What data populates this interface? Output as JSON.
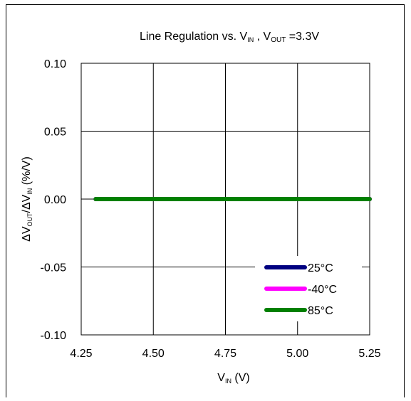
{
  "chart_data": {
    "type": "line",
    "title": {
      "prefix": "Line Regulation  vs. V",
      "sub1": "IN",
      "mid": " , V",
      "sub2": "OUT",
      "suffix": " =3.3V"
    },
    "xlabel": {
      "main": "V",
      "sub": "IN",
      "unit": " (V)"
    },
    "ylabel": {
      "p1": "ΔV",
      "s1": "OUT",
      "p2": "/ΔV",
      "s2": "IN",
      "p3": " (%/V)"
    },
    "xlim": [
      4.25,
      5.25
    ],
    "ylim": [
      -0.1,
      0.1
    ],
    "x_ticks": [
      4.25,
      4.5,
      4.75,
      5.0,
      5.25
    ],
    "x_tick_labels": [
      "4.25",
      "4.50",
      "4.75",
      "5.00",
      "5.25"
    ],
    "y_ticks": [
      0.1,
      0.05,
      0.0,
      -0.05,
      -0.1
    ],
    "y_tick_labels": [
      "0.10",
      "0.05",
      "0.00",
      "-0.05",
      "-0.10"
    ],
    "grid": true,
    "legend_position": "bottom-right",
    "series": [
      {
        "name": "25°C",
        "color": "#000080",
        "x": [
          4.3,
          5.25
        ],
        "y": [
          0.0,
          0.0
        ]
      },
      {
        "name": "-40°C",
        "color": "#ff00ff",
        "x": [
          4.3,
          5.25
        ],
        "y": [
          0.0,
          0.0
        ]
      },
      {
        "name": "85°C",
        "color": "#008000",
        "x": [
          4.3,
          5.25
        ],
        "y": [
          0.0,
          0.0
        ]
      }
    ]
  }
}
